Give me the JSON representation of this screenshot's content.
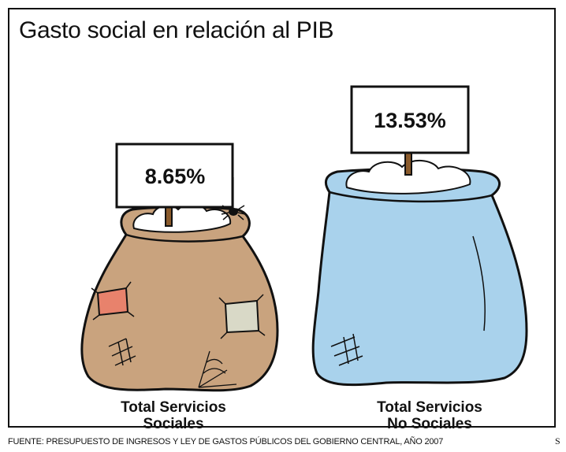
{
  "chart_data": {
    "type": "bar",
    "title": "Gasto social en relación al PIB",
    "categories": [
      "Total Servicios Sociales",
      "Total Servicios No Sociales"
    ],
    "category_lines": [
      [
        "Total Servicios",
        "Sociales"
      ],
      [
        "Total Servicios",
        "No Sociales"
      ]
    ],
    "values": [
      8.65,
      13.53
    ],
    "value_labels": [
      "8.65%",
      "13.53%"
    ],
    "unit": "%",
    "xlabel": "",
    "ylabel": "",
    "colors": {
      "sociales_sack": "#c9a37e",
      "no_sociales_sack": "#a9d2ec",
      "patch_red": "#e8826c",
      "patch_grey": "#d9d9c7",
      "outline": "#111111"
    },
    "icons": [
      "spider-icon",
      "money-sack-icon"
    ]
  },
  "footer": {
    "source": "FUENTE: PRESUPUESTO DE INGRESOS Y LEY DE GASTOS PÚBLICOS DEL GOBIERNO CENTRAL, AÑO 2007",
    "corner_mark": "S"
  }
}
